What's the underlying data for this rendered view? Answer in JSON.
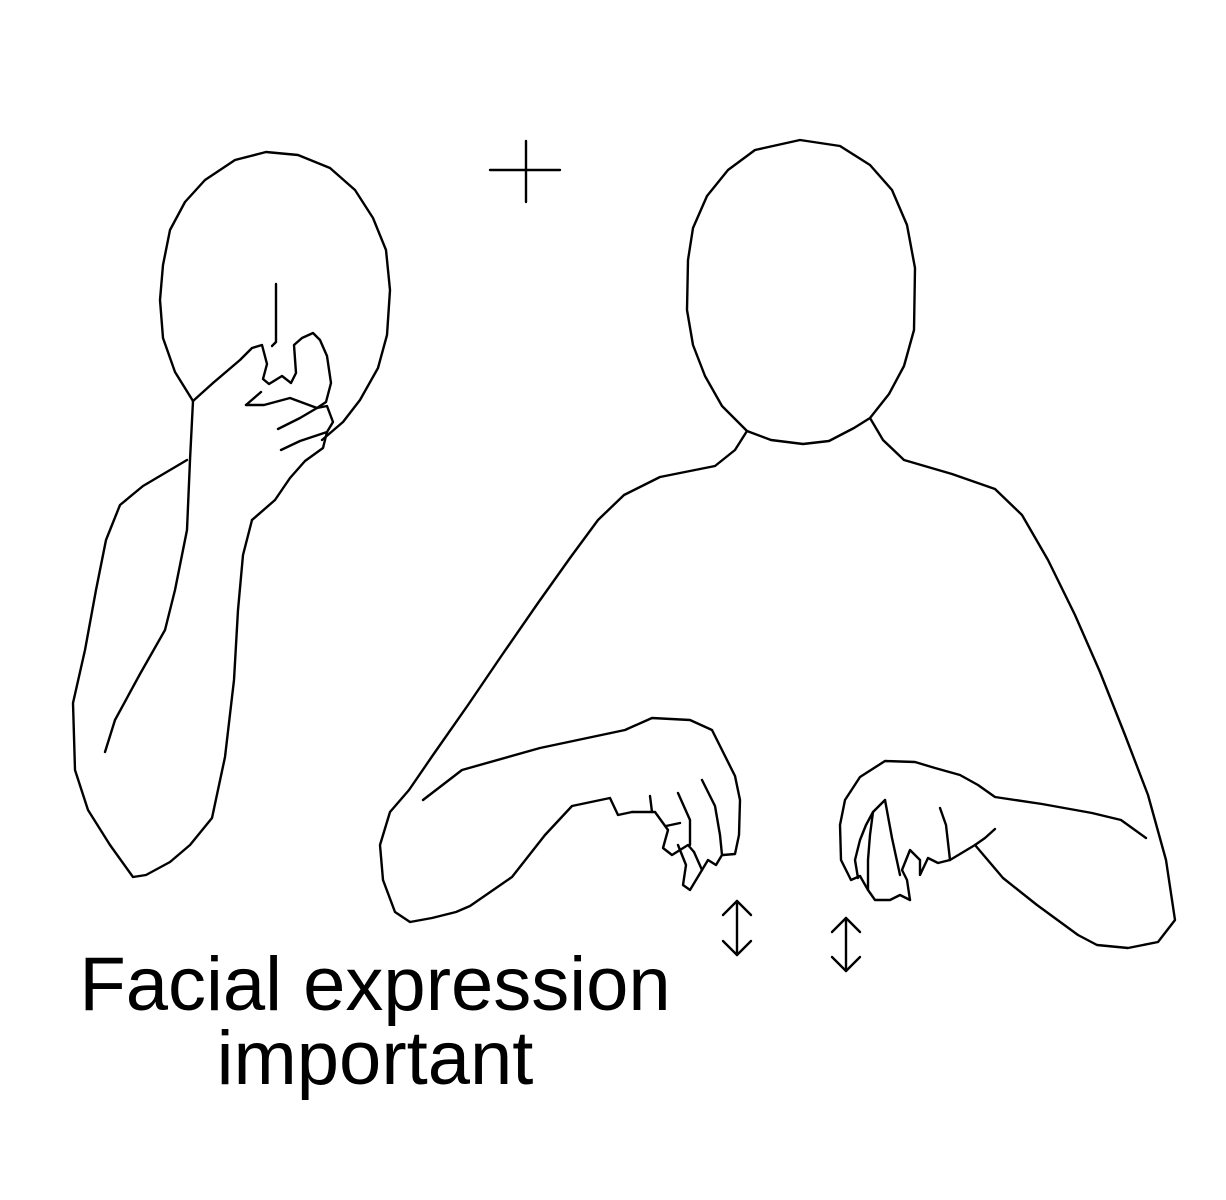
{
  "caption": {
    "line1": "Facial expression",
    "line2": "important"
  },
  "figures": [
    {
      "name": "left-figure",
      "depicts": "head with hand at nose, raised forearm"
    },
    {
      "name": "right-figure",
      "depicts": "torso with both hands bent downward"
    }
  ],
  "symbols": [
    {
      "name": "crosshair-icon"
    },
    {
      "name": "double-arrow-icon",
      "meaning": "up-down movement"
    },
    {
      "name": "double-arrow-icon",
      "meaning": "up-down movement"
    }
  ],
  "colors": {
    "background": "#ffffff",
    "line": "#000000"
  }
}
